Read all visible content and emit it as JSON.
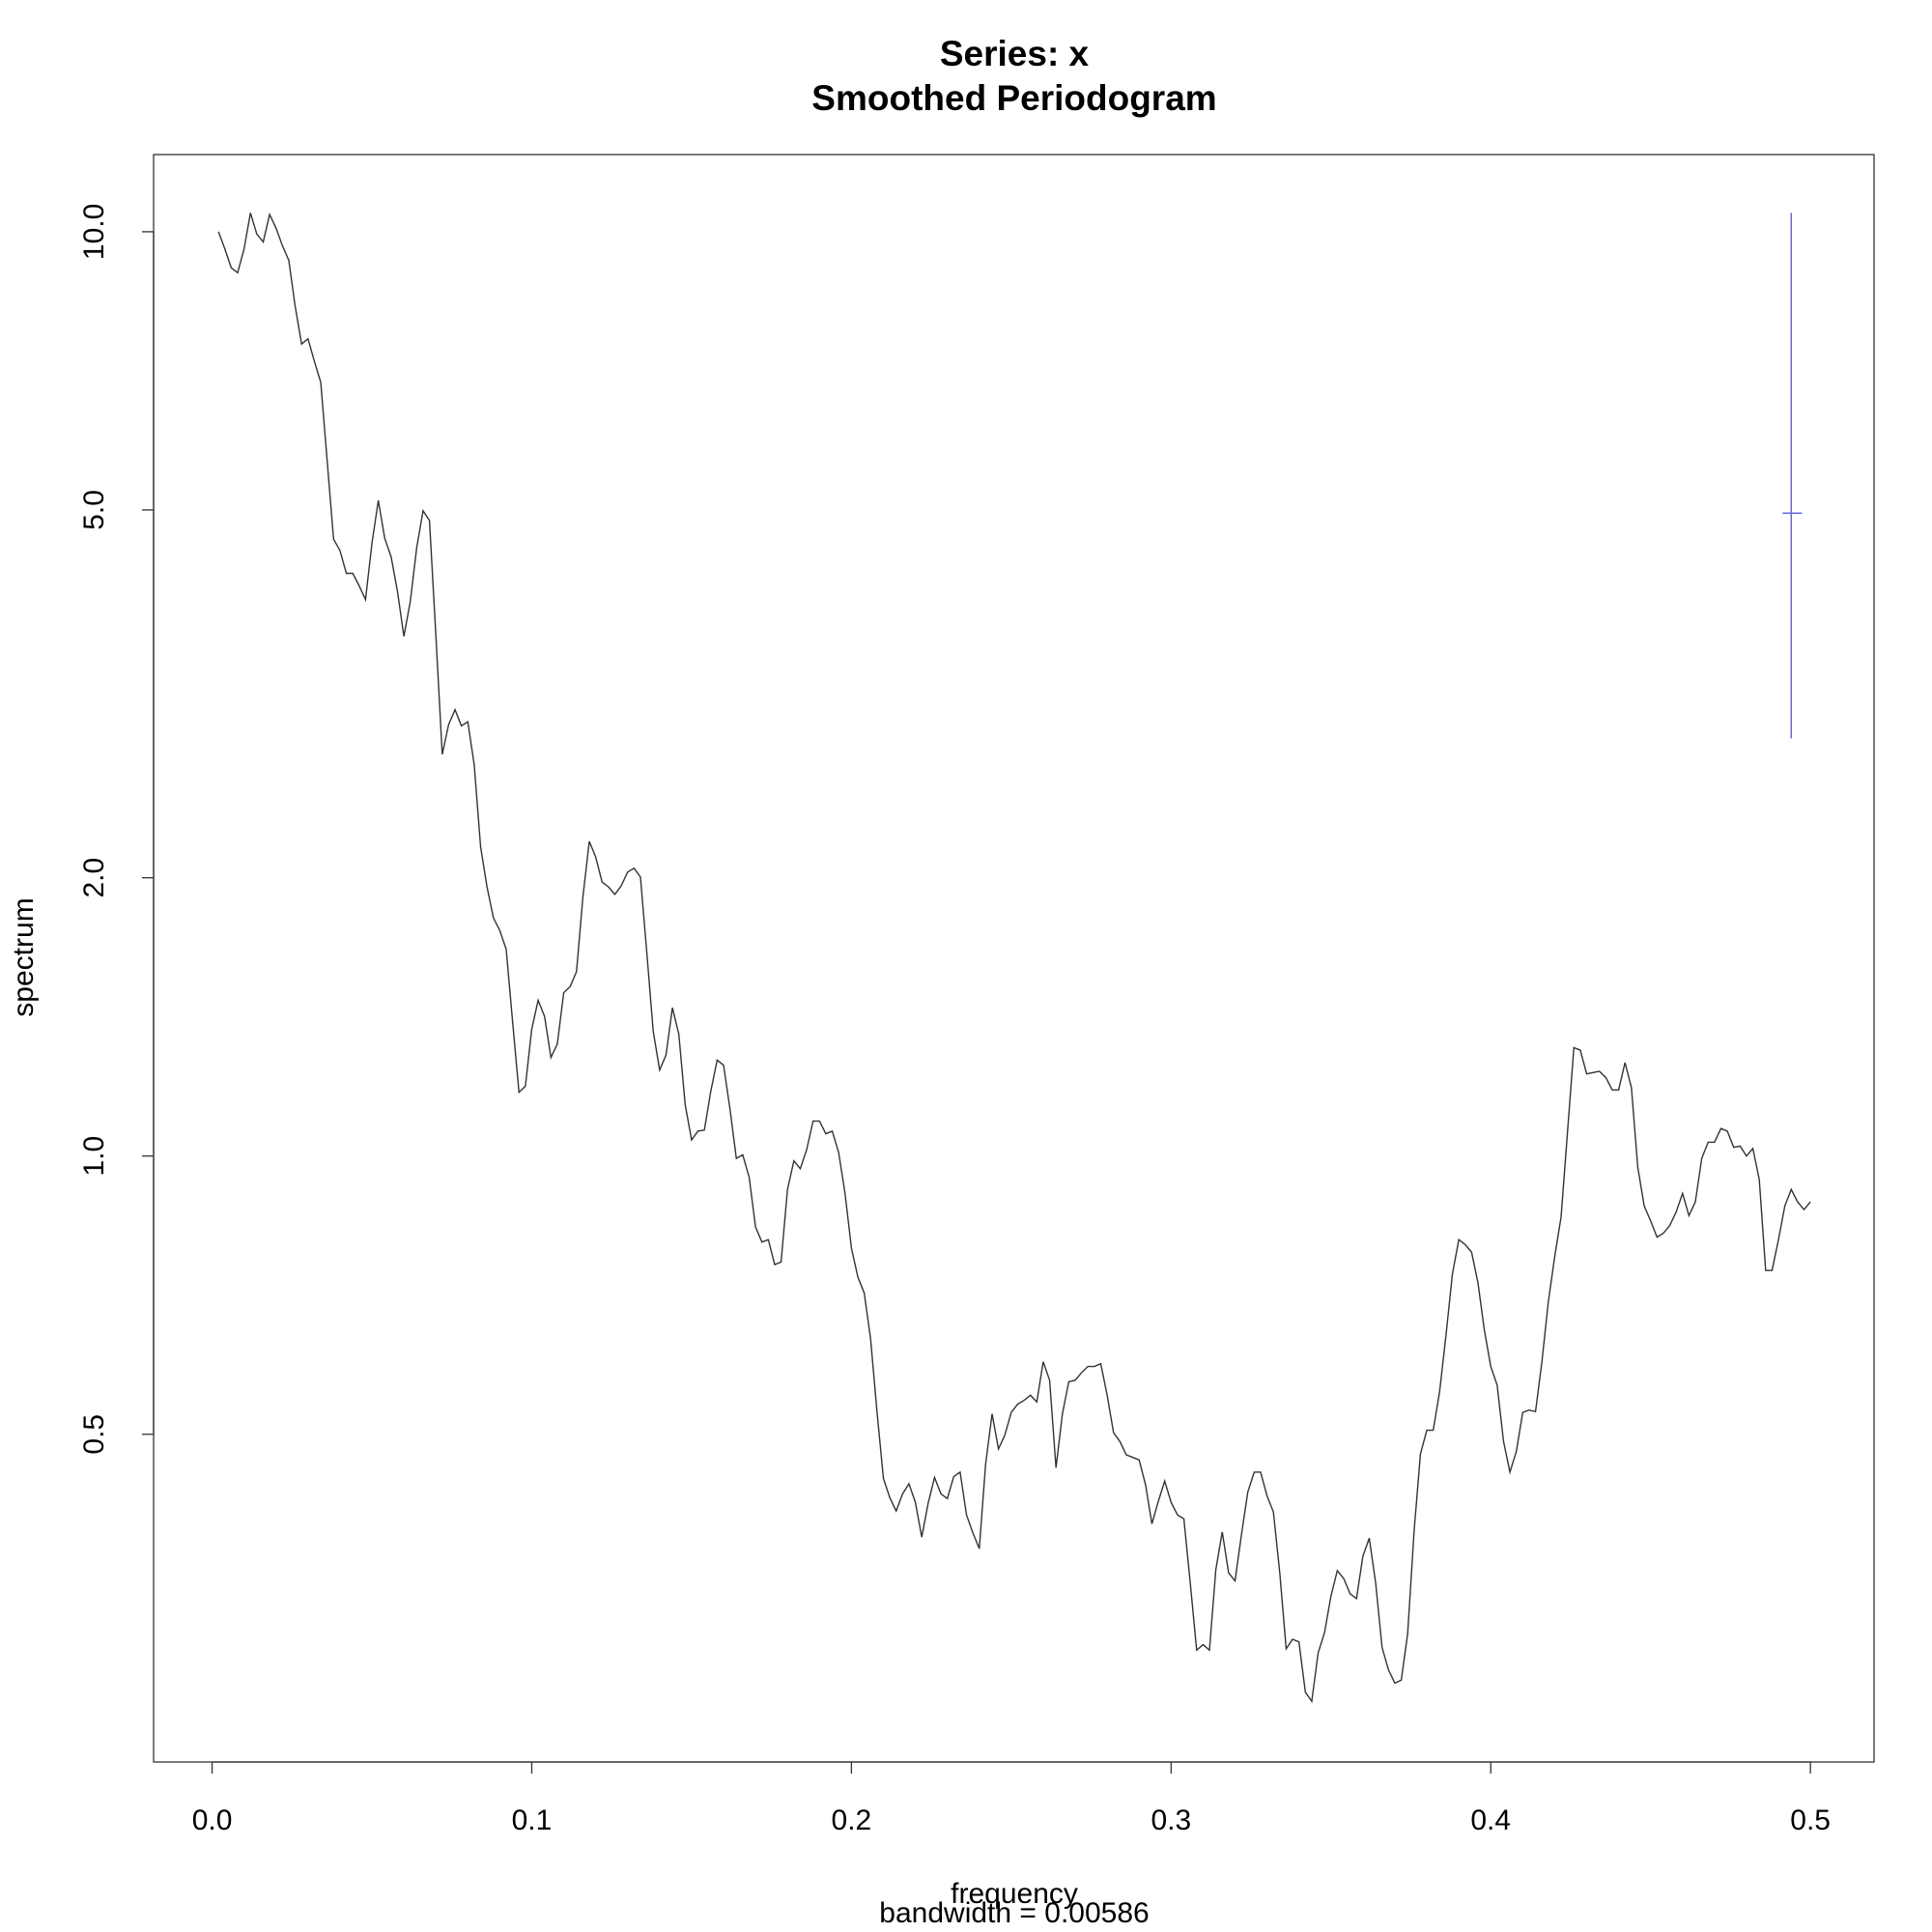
{
  "chart_data": {
    "type": "line",
    "title": "Series: x",
    "subtitle": "Smoothed Periodogram",
    "x_label": "frequency",
    "x_sublabel": "bandwidth = 0.00586",
    "y_label": "spectrum",
    "log_y": true,
    "color": "#333333",
    "xlim": [
      -0.0183,
      0.5199
    ],
    "ylim": [
      0.221,
      12.12
    ],
    "xticks": [
      {
        "value": 0,
        "label": "0.0"
      },
      0.1,
      0.2,
      0.3,
      0.4,
      0.5
    ],
    "yticks": [
      0.5,
      {
        "value": 1,
        "label": "1.0"
      },
      {
        "value": 2,
        "label": "2.0"
      },
      {
        "value": 5,
        "label": "5.0"
      },
      {
        "value": 10,
        "label": "10.0"
      }
    ],
    "x": [
      0.002,
      0.004,
      0.006,
      0.008,
      0.01,
      0.012,
      0.014,
      0.016,
      0.018,
      0.02,
      0.022,
      0.024,
      0.026,
      0.028,
      0.03,
      0.032,
      0.034,
      0.036,
      0.038,
      0.04,
      0.042,
      0.044,
      0.046,
      0.048,
      0.05,
      0.052,
      0.054,
      0.056,
      0.058,
      0.06,
      0.062,
      0.064,
      0.066,
      0.068,
      0.07,
      0.072,
      0.074,
      0.076,
      0.078,
      0.08,
      0.082,
      0.084,
      0.086,
      0.088,
      0.09,
      0.092,
      0.094,
      0.096,
      0.098,
      0.1,
      0.102,
      0.104,
      0.106,
      0.108,
      0.11,
      0.112,
      0.114,
      0.116,
      0.118,
      0.12,
      0.122,
      0.124,
      0.126,
      0.128,
      0.13,
      0.132,
      0.134,
      0.136,
      0.138,
      0.14,
      0.142,
      0.144,
      0.146,
      0.148,
      0.15,
      0.152,
      0.154,
      0.156,
      0.158,
      0.16,
      0.162,
      0.164,
      0.166,
      0.168,
      0.17,
      0.172,
      0.174,
      0.176,
      0.178,
      0.18,
      0.182,
      0.184,
      0.186,
      0.188,
      0.19,
      0.192,
      0.194,
      0.196,
      0.198,
      0.2,
      0.202,
      0.204,
      0.206,
      0.208,
      0.21,
      0.212,
      0.214,
      0.216,
      0.218,
      0.22,
      0.222,
      0.224,
      0.226,
      0.228,
      0.23,
      0.232,
      0.234,
      0.236,
      0.238,
      0.24,
      0.242,
      0.244,
      0.246,
      0.248,
      0.25,
      0.252,
      0.254,
      0.256,
      0.258,
      0.26,
      0.262,
      0.264,
      0.266,
      0.268,
      0.27,
      0.272,
      0.274,
      0.276,
      0.278,
      0.28,
      0.282,
      0.284,
      0.286,
      0.288,
      0.29,
      0.292,
      0.294,
      0.296,
      0.298,
      0.3,
      0.302,
      0.304,
      0.306,
      0.308,
      0.31,
      0.312,
      0.314,
      0.316,
      0.318,
      0.32,
      0.322,
      0.324,
      0.326,
      0.328,
      0.33,
      0.332,
      0.334,
      0.336,
      0.338,
      0.34,
      0.342,
      0.344,
      0.346,
      0.348,
      0.35,
      0.352,
      0.354,
      0.356,
      0.358,
      0.36,
      0.362,
      0.364,
      0.366,
      0.368,
      0.37,
      0.372,
      0.374,
      0.376,
      0.378,
      0.38,
      0.382,
      0.384,
      0.386,
      0.388,
      0.39,
      0.392,
      0.394,
      0.396,
      0.398,
      0.4,
      0.402,
      0.404,
      0.406,
      0.408,
      0.41,
      0.412,
      0.414,
      0.416,
      0.418,
      0.42,
      0.422,
      0.424,
      0.426,
      0.428,
      0.43,
      0.432,
      0.434,
      0.436,
      0.438,
      0.44,
      0.442,
      0.444,
      0.446,
      0.448,
      0.45,
      0.452,
      0.454,
      0.456,
      0.458,
      0.46,
      0.462,
      0.464,
      0.466,
      0.468,
      0.47,
      0.472,
      0.474,
      0.476,
      0.478,
      0.48,
      0.482,
      0.484,
      0.486,
      0.488,
      0.49,
      0.492,
      0.494,
      0.496,
      0.498,
      0.5
    ],
    "values": [
      10.0,
      9.58,
      9.14,
      9.03,
      9.58,
      10.48,
      9.94,
      9.75,
      10.44,
      10.09,
      9.66,
      9.31,
      8.3,
      7.56,
      7.66,
      7.24,
      6.87,
      5.65,
      4.65,
      4.52,
      4.27,
      4.27,
      4.14,
      4.0,
      4.6,
      5.12,
      4.66,
      4.45,
      4.08,
      3.65,
      3.98,
      4.55,
      4.99,
      4.87,
      3.66,
      2.72,
      2.93,
      3.04,
      2.92,
      2.95,
      2.65,
      2.16,
      1.955,
      1.81,
      1.754,
      1.674,
      1.398,
      1.172,
      1.19,
      1.372,
      1.474,
      1.416,
      1.278,
      1.322,
      1.502,
      1.525,
      1.583,
      1.907,
      2.19,
      2.106,
      1.979,
      1.955,
      1.919,
      1.961,
      2.029,
      2.048,
      2.004,
      1.658,
      1.364,
      1.239,
      1.286,
      1.447,
      1.355,
      1.136,
      1.041,
      1.064,
      1.067,
      1.175,
      1.27,
      1.254,
      1.125,
      0.994,
      1.003,
      0.949,
      0.838,
      0.807,
      0.812,
      0.763,
      0.768,
      0.92,
      0.988,
      0.969,
      1.016,
      1.091,
      1.091,
      1.057,
      1.064,
      1.009,
      0.911,
      0.795,
      0.74,
      0.711,
      0.634,
      0.529,
      0.448,
      0.427,
      0.413,
      0.431,
      0.442,
      0.422,
      0.387,
      0.421,
      0.449,
      0.431,
      0.426,
      0.45,
      0.455,
      0.409,
      0.391,
      0.376,
      0.465,
      0.526,
      0.482,
      0.499,
      0.528,
      0.539,
      0.544,
      0.551,
      0.542,
      0.599,
      0.572,
      0.46,
      0.526,
      0.57,
      0.572,
      0.583,
      0.592,
      0.592,
      0.596,
      0.551,
      0.502,
      0.491,
      0.475,
      0.472,
      0.469,
      0.441,
      0.4,
      0.423,
      0.445,
      0.422,
      0.409,
      0.405,
      0.345,
      0.292,
      0.296,
      0.292,
      0.357,
      0.392,
      0.354,
      0.347,
      0.389,
      0.433,
      0.455,
      0.455,
      0.429,
      0.412,
      0.354,
      0.293,
      0.3,
      0.298,
      0.263,
      0.257,
      0.29,
      0.305,
      0.334,
      0.356,
      0.349,
      0.336,
      0.332,
      0.369,
      0.386,
      0.345,
      0.294,
      0.278,
      0.269,
      0.271,
      0.304,
      0.392,
      0.476,
      0.505,
      0.505,
      0.556,
      0.64,
      0.745,
      0.812,
      0.802,
      0.787,
      0.729,
      0.648,
      0.592,
      0.565,
      0.491,
      0.455,
      0.479,
      0.528,
      0.531,
      0.529,
      0.599,
      0.695,
      0.778,
      0.859,
      1.061,
      1.31,
      1.302,
      1.227,
      1.231,
      1.235,
      1.216,
      1.179,
      1.179,
      1.262,
      1.186,
      0.972,
      0.883,
      0.851,
      0.817,
      0.825,
      0.841,
      0.87,
      0.911,
      0.862,
      0.892,
      0.994,
      1.035,
      1.035,
      1.071,
      1.064,
      1.022,
      1.025,
      1.0,
      1.019,
      0.943,
      0.752,
      0.752,
      0.812,
      0.883,
      0.92,
      0.892,
      0.875,
      0.892
    ],
    "ci": {
      "x": 0.494,
      "center": 4.96,
      "lower": 2.83,
      "upper": 10.48,
      "color": "#6666ee"
    }
  }
}
